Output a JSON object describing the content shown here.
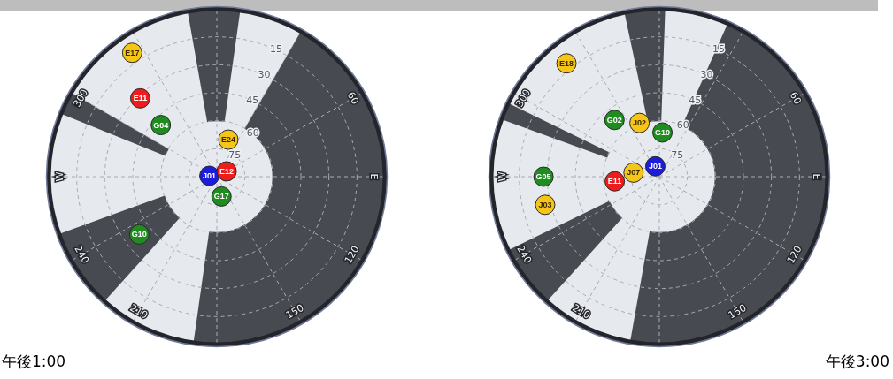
{
  "chart_data": [
    {
      "type": "polar",
      "title": "午後1:00",
      "elevation_lim": [
        0,
        90
      ],
      "elevation_ticks": [
        15,
        30,
        45,
        60,
        75
      ],
      "azimuth_ticks": [
        60,
        {
          "value": 90,
          "label": "E"
        },
        120,
        150,
        210,
        240,
        {
          "value": 270,
          "label": "W"
        },
        300
      ],
      "grid": true,
      "points": [
        {
          "name": "E17",
          "azimuth": 326,
          "elevation": 9,
          "color": "#f5c518"
        },
        {
          "name": "E11",
          "azimuth": 316,
          "elevation": 31,
          "color": "#ee1c1c"
        },
        {
          "name": "G04",
          "azimuth": 313,
          "elevation": 49,
          "color": "#1e8c1e"
        },
        {
          "name": "E24",
          "azimuth": 17,
          "elevation": 69,
          "color": "#f5c518"
        },
        {
          "name": "J01",
          "azimuth": 277,
          "elevation": 86,
          "color": "#1c1cdc"
        },
        {
          "name": "E12",
          "azimuth": 61,
          "elevation": 84,
          "color": "#ee1c1c"
        },
        {
          "name": "G17",
          "azimuth": 167,
          "elevation": 79,
          "color": "#1e8c1e"
        },
        {
          "name": "G10",
          "azimuth": 233,
          "elevation": 38,
          "color": "#1e8c1e"
        }
      ]
    },
    {
      "type": "polar",
      "title": "午後3:00",
      "elevation_lim": [
        0,
        90
      ],
      "elevation_ticks": [
        15,
        30,
        45,
        60,
        75
      ],
      "azimuth_ticks": [
        60,
        {
          "value": 90,
          "label": "E"
        },
        120,
        150,
        210,
        240,
        {
          "value": 270,
          "label": "W"
        },
        300
      ],
      "grid": true,
      "points": [
        {
          "name": "E18",
          "azimuth": 321,
          "elevation": 11,
          "color": "#f5c518"
        },
        {
          "name": "G02",
          "azimuth": 322,
          "elevation": 51,
          "color": "#1e8c1e"
        },
        {
          "name": "J02",
          "azimuth": 340,
          "elevation": 59,
          "color": "#f5c518"
        },
        {
          "name": "G10",
          "azimuth": 4,
          "elevation": 66,
          "color": "#1e8c1e"
        },
        {
          "name": "J01",
          "azimuth": 339,
          "elevation": 84,
          "color": "#1c1cdc"
        },
        {
          "name": "J07",
          "azimuth": 279,
          "elevation": 76,
          "color": "#f5c518"
        },
        {
          "name": "E11",
          "azimuth": 264,
          "elevation": 66,
          "color": "#ee1c1c"
        },
        {
          "name": "G05",
          "azimuth": 270,
          "elevation": 28,
          "color": "#1e8c1e"
        },
        {
          "name": "J03",
          "azimuth": 256,
          "elevation": 27,
          "color": "#f5c518"
        }
      ]
    }
  ]
}
